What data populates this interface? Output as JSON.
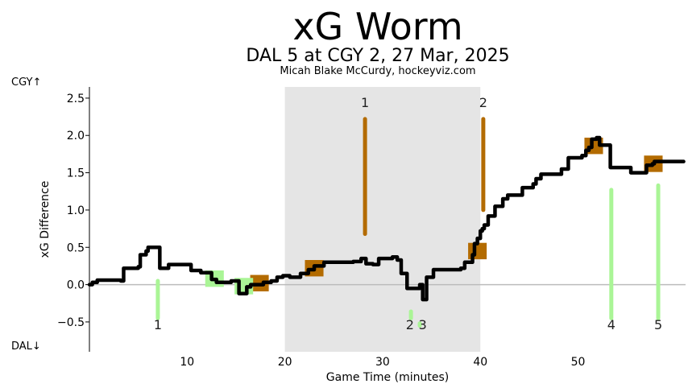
{
  "header": {
    "title": "xG Worm",
    "subtitle": "DAL 5 at CGY 2, 27 Mar, 2025",
    "credit": "Micah Blake McCurdy, hockeyviz.com"
  },
  "side_labels": {
    "top": "CGY↑",
    "bottom": "DAL↓"
  },
  "colors": {
    "worm": "#000000",
    "cgy": "#b36b00",
    "dal": "#aaf596",
    "period": "#e5e5e5",
    "zero_line": "#bbbbbb"
  },
  "chart_data": {
    "type": "line",
    "title": "xG Worm",
    "xlabel": "Game Time (minutes)",
    "ylabel": "xG Difference",
    "xlim": [
      0,
      61
    ],
    "ylim": [
      -0.9,
      2.65
    ],
    "x_ticks": [
      10,
      20,
      30,
      40,
      50
    ],
    "y_ticks": [
      -0.5,
      0.0,
      0.5,
      1.0,
      1.5,
      2.0,
      2.5
    ],
    "y_tick_labels": [
      "−0.5",
      "0.0",
      "0.5",
      "1.0",
      "1.5",
      "2.0",
      "2.5"
    ],
    "shaded_region": [
      20,
      40
    ],
    "worm": [
      [
        0.0,
        0.0
      ],
      [
        0.3,
        0.03
      ],
      [
        0.8,
        0.06
      ],
      [
        3.2,
        0.05
      ],
      [
        3.5,
        0.22
      ],
      [
        5.0,
        0.24
      ],
      [
        5.2,
        0.4
      ],
      [
        5.8,
        0.45
      ],
      [
        6.0,
        0.5
      ],
      [
        7.1,
        0.5
      ],
      [
        7.2,
        0.22
      ],
      [
        7.8,
        0.22
      ],
      [
        8.1,
        0.27
      ],
      [
        10.2,
        0.27
      ],
      [
        10.4,
        0.19
      ],
      [
        11.2,
        0.19
      ],
      [
        11.4,
        0.16
      ],
      [
        12.2,
        0.16
      ],
      [
        12.5,
        0.07
      ],
      [
        13.0,
        0.03
      ],
      [
        14.2,
        0.03
      ],
      [
        14.5,
        0.05
      ],
      [
        15.1,
        0.05
      ],
      [
        15.3,
        -0.12
      ],
      [
        15.8,
        -0.12
      ],
      [
        16.1,
        -0.03
      ],
      [
        16.5,
        0.0
      ],
      [
        17.5,
        0.0
      ],
      [
        17.8,
        0.03
      ],
      [
        18.6,
        0.05
      ],
      [
        19.2,
        0.1
      ],
      [
        19.8,
        0.12
      ],
      [
        20.5,
        0.1
      ],
      [
        21.1,
        0.1
      ],
      [
        21.6,
        0.15
      ],
      [
        22.4,
        0.2
      ],
      [
        23.0,
        0.25
      ],
      [
        24.0,
        0.3
      ],
      [
        26.0,
        0.3
      ],
      [
        27.0,
        0.31
      ],
      [
        27.8,
        0.35
      ],
      [
        28.3,
        0.28
      ],
      [
        29.0,
        0.27
      ],
      [
        29.6,
        0.35
      ],
      [
        31.0,
        0.37
      ],
      [
        31.5,
        0.33
      ],
      [
        31.9,
        0.15
      ],
      [
        32.3,
        0.15
      ],
      [
        32.5,
        -0.05
      ],
      [
        33.3,
        -0.05
      ],
      [
        33.8,
        0.0
      ],
      [
        34.1,
        -0.2
      ],
      [
        34.5,
        0.1
      ],
      [
        35.2,
        0.2
      ],
      [
        38.0,
        0.22
      ],
      [
        38.4,
        0.3
      ],
      [
        39.2,
        0.4
      ],
      [
        39.4,
        0.55
      ],
      [
        39.7,
        0.62
      ],
      [
        40.0,
        0.72
      ],
      [
        40.2,
        0.75
      ],
      [
        40.4,
        0.8
      ],
      [
        40.8,
        0.92
      ],
      [
        41.5,
        1.05
      ],
      [
        42.3,
        1.15
      ],
      [
        42.8,
        1.2
      ],
      [
        44.3,
        1.3
      ],
      [
        45.4,
        1.35
      ],
      [
        45.7,
        1.42
      ],
      [
        46.2,
        1.48
      ],
      [
        48.0,
        1.48
      ],
      [
        48.3,
        1.55
      ],
      [
        49.0,
        1.7
      ],
      [
        50.4,
        1.73
      ],
      [
        50.8,
        1.8
      ],
      [
        51.1,
        1.84
      ],
      [
        51.4,
        1.95
      ],
      [
        51.9,
        1.97
      ],
      [
        52.2,
        1.87
      ],
      [
        53.3,
        1.57
      ],
      [
        55.0,
        1.57
      ],
      [
        55.4,
        1.5
      ],
      [
        56.5,
        1.5
      ],
      [
        57.0,
        1.6
      ],
      [
        57.6,
        1.62
      ],
      [
        57.8,
        1.65
      ],
      [
        60.8,
        1.65
      ]
    ],
    "cgy_shots": [
      [
        17.4,
        0.02
      ],
      [
        23.0,
        0.22
      ],
      [
        39.7,
        0.45
      ],
      [
        51.6,
        1.86
      ],
      [
        57.7,
        1.62
      ]
    ],
    "dal_shots": [
      [
        12.8,
        0.08
      ],
      [
        15.8,
        -0.02
      ]
    ],
    "goals": [
      {
        "team": "CGY",
        "label": "1",
        "x": 28.2,
        "y0": 0.68,
        "y1": 2.22
      },
      {
        "team": "CGY",
        "label": "2",
        "x": 40.3,
        "y0": 1.0,
        "y1": 2.22
      },
      {
        "team": "DAL",
        "label": "1",
        "x": 7.0,
        "y0": -0.45,
        "y1": 0.05
      },
      {
        "team": "DAL",
        "label": "2",
        "x": 32.9,
        "y0": -0.45,
        "y1": -0.36
      },
      {
        "team": "DAL",
        "label": "3",
        "x": 33.8,
        "y0": -0.55,
        "y1": -0.52
      },
      {
        "team": "DAL",
        "label": "4",
        "x": 53.4,
        "y0": -0.45,
        "y1": 1.27
      },
      {
        "team": "DAL",
        "label": "5",
        "x": 58.2,
        "y0": -0.45,
        "y1": 1.33
      }
    ],
    "goal_label_positions": {
      "CGY": 2.38,
      "DAL": -0.6
    },
    "dal_label_x": {
      "2": 32.8,
      "3": 34.1
    }
  }
}
